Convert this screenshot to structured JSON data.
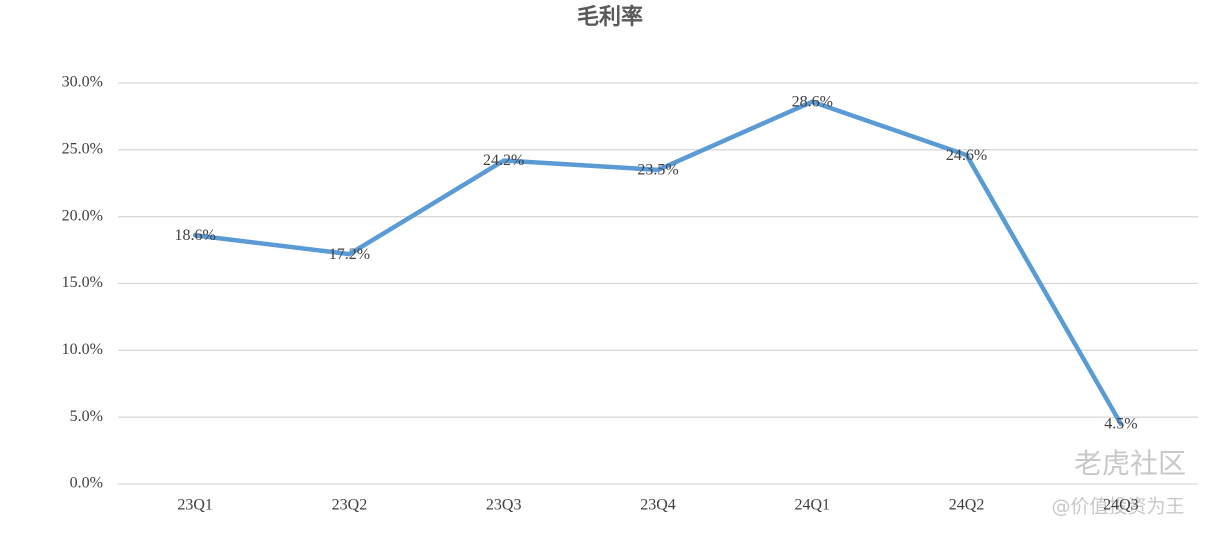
{
  "chart_data": {
    "type": "line",
    "title": "毛利率",
    "categories": [
      "23Q1",
      "23Q2",
      "23Q3",
      "23Q4",
      "24Q1",
      "24Q2",
      "24Q3"
    ],
    "series": [
      {
        "name": "毛利率",
        "color": "#5b9bd5",
        "values": [
          18.6,
          17.2,
          24.2,
          23.5,
          28.6,
          24.6,
          4.5
        ],
        "value_labels": [
          "18.6%",
          "17.2%",
          "24.2%",
          "23.5%",
          "28.6%",
          "24.6%",
          "4.5%"
        ]
      }
    ],
    "ylim": [
      0,
      30
    ],
    "yticks": [
      {
        "value": 0,
        "label": "0.0%"
      },
      {
        "value": 5,
        "label": "5.0%"
      },
      {
        "value": 10,
        "label": "10.0%"
      },
      {
        "value": 15,
        "label": "15.0%"
      },
      {
        "value": 20,
        "label": "20.0%"
      },
      {
        "value": 25,
        "label": "25.0%"
      },
      {
        "value": 30,
        "label": "30.0%"
      }
    ],
    "grid": true
  },
  "watermark": {
    "logo": "老虎社区",
    "handle": "@价值投资为王"
  }
}
